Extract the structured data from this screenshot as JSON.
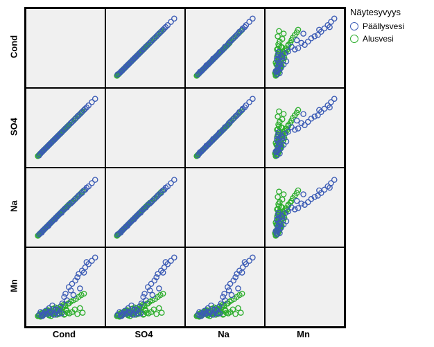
{
  "legend": {
    "title": "Näytesyvyys",
    "items": [
      {
        "label": "Päällysvesi",
        "color": "#3b5bb5"
      },
      {
        "label": "Alusvesi",
        "color": "#2eae2e"
      }
    ]
  },
  "variables": [
    "Cond",
    "SO4",
    "Na",
    "Mn"
  ],
  "colors": {
    "series1": "#3b5bb5",
    "series2": "#2eae2e",
    "cell_bg": "#f0f0f0",
    "border": "#000000"
  },
  "marker": {
    "radius": 3.2,
    "stroke_width": 1.2
  },
  "ranges": {
    "Cond": [
      0,
      100
    ],
    "SO4": [
      0,
      100
    ],
    "Na": [
      0,
      100
    ],
    "Mn": [
      0,
      100
    ]
  },
  "series1": {
    "Cond": [
      10,
      12,
      15,
      18,
      20,
      22,
      25,
      28,
      30,
      32,
      35,
      38,
      40,
      42,
      45,
      48,
      50,
      55,
      60,
      65,
      70,
      75,
      80,
      85,
      90,
      95,
      14,
      16,
      24,
      26,
      34,
      36,
      44,
      52,
      58,
      62,
      68,
      72,
      78,
      82
    ],
    "SO4": [
      8,
      11,
      14,
      17,
      19,
      21,
      24,
      27,
      29,
      31,
      34,
      37,
      39,
      41,
      44,
      47,
      49,
      54,
      59,
      64,
      69,
      74,
      79,
      84,
      89,
      94,
      13,
      15,
      23,
      25,
      33,
      35,
      43,
      51,
      57,
      61,
      67,
      71,
      77,
      81
    ],
    "Na": [
      9,
      11,
      14,
      17,
      19,
      21,
      24,
      27,
      29,
      31,
      34,
      37,
      39,
      41,
      44,
      47,
      49,
      54,
      58,
      63,
      68,
      72,
      77,
      82,
      87,
      92,
      12,
      15,
      22,
      25,
      32,
      35,
      42,
      50,
      56,
      60,
      66,
      70,
      76,
      80
    ],
    "Mn": [
      8,
      12,
      6,
      10,
      14,
      9,
      18,
      11,
      22,
      8,
      12,
      15,
      10,
      20,
      25,
      35,
      40,
      50,
      55,
      60,
      70,
      75,
      80,
      85,
      90,
      95,
      7,
      9,
      11,
      13,
      8,
      16,
      10,
      30,
      45,
      38,
      65,
      48,
      72,
      88
    ]
  },
  "series2": {
    "Cond": [
      8,
      10,
      12,
      14,
      16,
      18,
      20,
      22,
      24,
      26,
      28,
      30,
      32,
      34,
      36,
      38,
      40,
      42,
      44,
      46,
      48,
      50,
      52,
      54,
      56,
      58,
      60,
      62,
      64,
      66,
      68,
      70,
      72,
      74,
      76,
      78,
      9,
      11,
      13,
      15,
      17,
      19,
      21,
      23,
      25,
      27,
      29,
      31,
      33,
      35,
      37,
      39,
      41,
      43,
      45,
      47,
      49,
      51,
      53,
      55
    ],
    "SO4": [
      7,
      9,
      11,
      13,
      15,
      17,
      19,
      21,
      23,
      25,
      27,
      29,
      31,
      33,
      35,
      37,
      39,
      41,
      43,
      45,
      47,
      49,
      51,
      53,
      55,
      57,
      59,
      61,
      63,
      65,
      67,
      69,
      71,
      73,
      75,
      77,
      8,
      10,
      12,
      14,
      16,
      18,
      20,
      22,
      24,
      26,
      28,
      30,
      32,
      34,
      36,
      38,
      40,
      42,
      44,
      46,
      48,
      50,
      52,
      54
    ],
    "Na": [
      7,
      9,
      11,
      13,
      15,
      17,
      19,
      21,
      23,
      25,
      27,
      29,
      31,
      33,
      35,
      37,
      39,
      41,
      43,
      45,
      47,
      49,
      51,
      53,
      55,
      57,
      58,
      60,
      62,
      64,
      66,
      68,
      70,
      72,
      74,
      76,
      8,
      10,
      12,
      14,
      16,
      18,
      20,
      22,
      24,
      26,
      28,
      30,
      32,
      34,
      36,
      38,
      40,
      42,
      44,
      46,
      48,
      50,
      52,
      54
    ],
    "Mn": [
      6,
      8,
      5,
      10,
      7,
      12,
      9,
      14,
      8,
      11,
      6,
      13,
      10,
      15,
      12,
      18,
      9,
      16,
      11,
      20,
      8,
      22,
      14,
      25,
      10,
      28,
      12,
      30,
      16,
      32,
      9,
      35,
      18,
      38,
      11,
      40,
      7,
      9,
      6,
      11,
      8,
      13,
      10,
      15,
      7,
      12,
      9,
      17,
      11,
      19,
      8,
      14,
      10,
      21,
      12,
      23,
      9,
      16,
      11,
      25
    ]
  }
}
